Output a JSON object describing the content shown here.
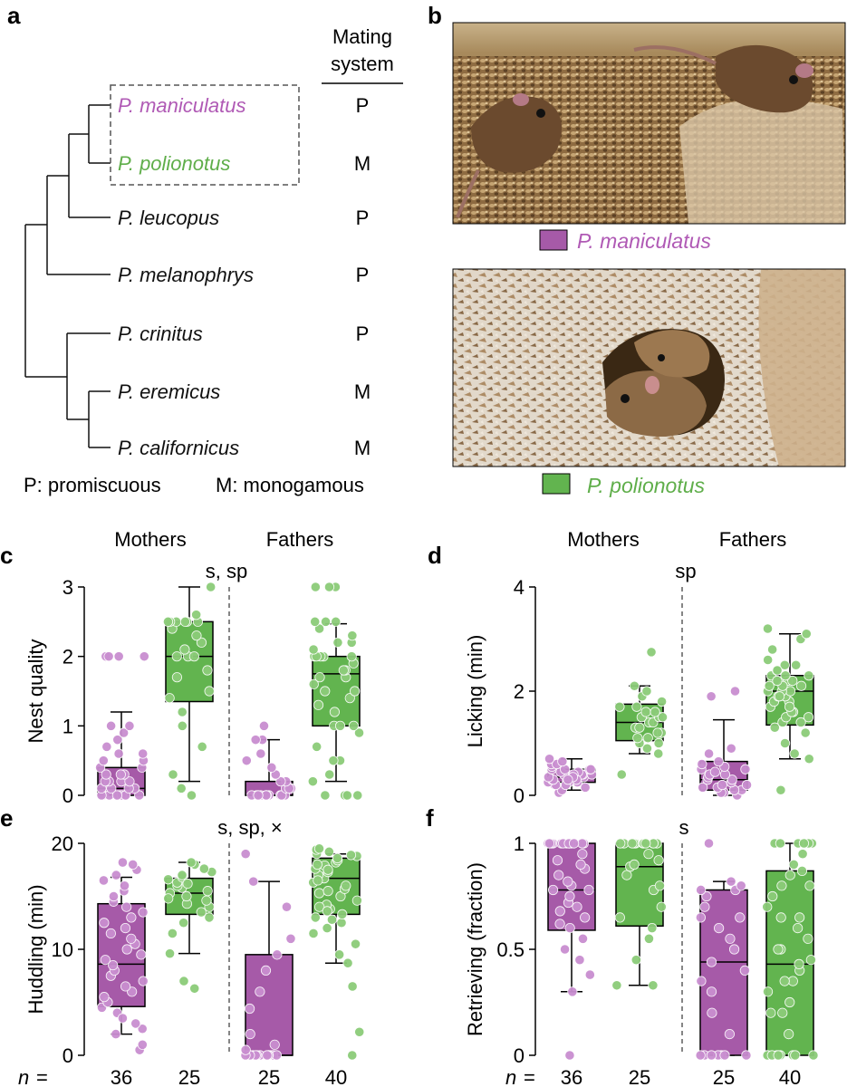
{
  "colors": {
    "maniculatus": "#b05ab5",
    "maniculatus_fill": "#a65aa8",
    "maniculatus_point": "#c98ed0",
    "polionotus": "#5fae4a",
    "polionotus_fill": "#62b44f",
    "polionotus_point": "#8ccc79"
  },
  "panel_a": {
    "letter": "a",
    "column_header_line1": "Mating",
    "column_header_line2": "system",
    "species": [
      {
        "name": "P. maniculatus",
        "system": "P",
        "color": "#b05ab5"
      },
      {
        "name": "P. polionotus",
        "system": "M",
        "color": "#5fae4a"
      },
      {
        "name": "P. leucopus",
        "system": "P",
        "color": "#111111"
      },
      {
        "name": "P. melanophrys",
        "system": "P",
        "color": "#111111"
      },
      {
        "name": "P. crinitus",
        "system": "P",
        "color": "#111111"
      },
      {
        "name": "P. eremicus",
        "system": "M",
        "color": "#111111"
      },
      {
        "name": "P. californicus",
        "system": "M",
        "color": "#111111"
      }
    ],
    "legend_p": "P: promiscuous",
    "legend_m": "M: monogamous"
  },
  "panel_b": {
    "letter": "b",
    "photo1_label": "P. maniculatus",
    "photo2_label": "P. polionotus"
  },
  "group_labels": {
    "mothers": "Mothers",
    "fathers": "Fathers"
  },
  "n_row": {
    "label": "n =",
    "values": [
      "36",
      "25",
      "25",
      "40"
    ]
  },
  "chart_data": [
    {
      "panel": "c",
      "type": "box",
      "ylabel": "Nest quality",
      "significance": "s, sp",
      "ylim": [
        0,
        3
      ],
      "yticks": [
        0,
        1,
        2,
        3
      ],
      "groups": [
        "Mothers",
        "Fathers"
      ],
      "series": [
        {
          "group": "Mothers",
          "species": "P. maniculatus",
          "n": 36,
          "whisker_low": 0,
          "q1": 0,
          "median": 0.1,
          "q3": 0.4,
          "whisker_high": 1.2,
          "points": [
            0,
            0,
            0,
            0,
            0,
            0,
            0,
            0,
            0,
            0,
            0.1,
            0.1,
            0.1,
            0.1,
            0.2,
            0.2,
            0.2,
            0.2,
            0.3,
            0.3,
            0.3,
            0.4,
            0.4,
            0.5,
            0.5,
            0.6,
            0.6,
            0.7,
            0.8,
            0.9,
            1.0,
            1.0,
            2.0,
            2.0,
            2.0,
            2.0
          ]
        },
        {
          "group": "Mothers",
          "species": "P. polionotus",
          "n": 25,
          "whisker_low": 0.2,
          "q1": 1.35,
          "median": 2.0,
          "q3": 2.5,
          "whisker_high": 3.0,
          "points": [
            0,
            0.1,
            0.3,
            0.7,
            1.0,
            1.2,
            1.4,
            1.5,
            1.7,
            1.8,
            2.0,
            2.0,
            2.0,
            2.1,
            2.2,
            2.3,
            2.4,
            2.5,
            2.5,
            2.5,
            2.5,
            2.5,
            2.5,
            2.6,
            3.0
          ]
        },
        {
          "group": "Fathers",
          "species": "P. maniculatus",
          "n": 25,
          "whisker_low": 0,
          "q1": 0,
          "median": 0,
          "q3": 0.2,
          "whisker_high": 0.8,
          "points": [
            0,
            0,
            0,
            0,
            0,
            0,
            0,
            0,
            0,
            0,
            0,
            0,
            0,
            0.1,
            0.1,
            0.1,
            0.2,
            0.2,
            0.3,
            0.4,
            0.5,
            0.6,
            0.8,
            0.8,
            1.0
          ]
        },
        {
          "group": "Fathers",
          "species": "P. polionotus",
          "n": 40,
          "whisker_low": 0.2,
          "q1": 1.0,
          "median": 1.75,
          "q3": 2.0,
          "whisker_high": 2.47,
          "points": [
            0,
            0,
            0,
            0,
            0.2,
            0.3,
            0.5,
            0.5,
            0.7,
            0.9,
            1.0,
            1.0,
            1.0,
            1.2,
            1.3,
            1.4,
            1.5,
            1.5,
            1.6,
            1.7,
            1.7,
            1.8,
            1.8,
            1.9,
            2.0,
            2.0,
            2.0,
            2.0,
            2.0,
            2.1,
            2.2,
            2.2,
            2.3,
            2.4,
            2.5,
            2.5,
            2.5,
            3.0,
            3.0,
            3.0
          ]
        }
      ]
    },
    {
      "panel": "d",
      "type": "box",
      "ylabel": "Licking (min)",
      "significance": "sp",
      "ylim": [
        0,
        4
      ],
      "yticks": [
        0,
        2,
        4
      ],
      "groups": [
        "Mothers",
        "Fathers"
      ],
      "series": [
        {
          "group": "Mothers",
          "species": "P. maniculatus",
          "n": 36,
          "whisker_low": 0.1,
          "q1": 0.25,
          "median": 0.35,
          "q3": 0.5,
          "whisker_high": 0.7,
          "points": [
            0.05,
            0.1,
            0.15,
            0.2,
            0.2,
            0.25,
            0.25,
            0.3,
            0.3,
            0.3,
            0.3,
            0.35,
            0.35,
            0.35,
            0.35,
            0.4,
            0.4,
            0.4,
            0.4,
            0.45,
            0.45,
            0.5,
            0.5,
            0.5,
            0.55,
            0.6,
            0.6,
            0.65,
            0.7,
            0.3,
            0.25,
            0.2,
            0.4,
            0.5,
            0.35,
            0.3
          ]
        },
        {
          "group": "Mothers",
          "species": "P. polionotus",
          "n": 25,
          "whisker_low": 0.8,
          "q1": 1.05,
          "median": 1.4,
          "q3": 1.75,
          "whisker_high": 2.1,
          "points": [
            0.4,
            0.8,
            0.9,
            1.0,
            1.0,
            1.1,
            1.1,
            1.2,
            1.2,
            1.3,
            1.3,
            1.4,
            1.4,
            1.5,
            1.5,
            1.5,
            1.6,
            1.6,
            1.7,
            1.7,
            1.8,
            1.9,
            2.0,
            2.1,
            2.75
          ]
        },
        {
          "group": "Fathers",
          "species": "P. maniculatus",
          "n": 25,
          "whisker_low": 0,
          "q1": 0.1,
          "median": 0.3,
          "q3": 0.65,
          "whisker_high": 1.45,
          "points": [
            0,
            0.05,
            0.05,
            0.1,
            0.1,
            0.15,
            0.15,
            0.2,
            0.2,
            0.25,
            0.3,
            0.3,
            0.35,
            0.4,
            0.4,
            0.45,
            0.5,
            0.5,
            0.55,
            0.6,
            0.65,
            0.8,
            0.9,
            1.9,
            2.0
          ]
        },
        {
          "group": "Fathers",
          "species": "P. polionotus",
          "n": 40,
          "whisker_low": 0.7,
          "q1": 1.35,
          "median": 2.0,
          "q3": 2.3,
          "whisker_high": 3.1,
          "points": [
            0.1,
            0.7,
            0.8,
            1.0,
            1.2,
            1.3,
            1.4,
            1.5,
            1.5,
            1.6,
            1.7,
            1.8,
            1.8,
            1.9,
            1.9,
            2.0,
            2.0,
            2.0,
            2.1,
            2.1,
            2.2,
            2.2,
            2.3,
            2.3,
            2.3,
            2.4,
            2.5,
            2.6,
            2.8,
            3.0,
            3.1,
            3.2,
            1.6,
            1.9,
            2.1,
            2.4,
            1.4,
            1.7,
            2.2,
            2.5
          ]
        }
      ]
    },
    {
      "panel": "e",
      "type": "box",
      "ylabel": "Huddling (min)",
      "significance": "s, sp, ×",
      "ylim": [
        0,
        20
      ],
      "yticks": [
        0,
        10,
        20
      ],
      "groups": [
        "Mothers",
        "Fathers"
      ],
      "series": [
        {
          "group": "Mothers",
          "species": "P. maniculatus",
          "n": 36,
          "whisker_low": 2.0,
          "q1": 4.6,
          "median": 8.6,
          "q3": 14.3,
          "whisker_high": 16.8,
          "points": [
            0.5,
            1.0,
            2.0,
            2.5,
            3.0,
            4.0,
            4.5,
            5.0,
            5.5,
            6.0,
            6.5,
            7.0,
            7.5,
            8.0,
            8.5,
            9.0,
            9.5,
            10.0,
            10.5,
            11.0,
            11.5,
            12.0,
            12.5,
            13.0,
            13.5,
            14.0,
            14.5,
            15.0,
            15.5,
            16.0,
            16.5,
            17.0,
            17.5,
            18.0,
            18.2,
            3.5
          ]
        },
        {
          "group": "Mothers",
          "species": "P. polionotus",
          "n": 25,
          "whisker_low": 9.6,
          "q1": 13.3,
          "median": 15.3,
          "q3": 16.7,
          "whisker_high": 18.2,
          "points": [
            6.3,
            7.0,
            9.6,
            11.5,
            12.5,
            13.0,
            13.5,
            14.0,
            14.3,
            14.6,
            15.0,
            15.3,
            15.5,
            15.8,
            16.0,
            16.3,
            16.6,
            16.8,
            17.0,
            17.3,
            17.6,
            18.0,
            18.2,
            14.8,
            16.2
          ]
        },
        {
          "group": "Fathers",
          "species": "P. maniculatus",
          "n": 25,
          "whisker_low": 0,
          "q1": 0,
          "median": 0,
          "q3": 9.5,
          "whisker_high": 16.4,
          "points": [
            0,
            0,
            0,
            0,
            0,
            0,
            0,
            0,
            0,
            0,
            0,
            0,
            0,
            0,
            0.5,
            1.0,
            2.0,
            4.4,
            6.0,
            8.0,
            9.5,
            11.0,
            14.0,
            16.4,
            19.0
          ]
        },
        {
          "group": "Fathers",
          "species": "P. polionotus",
          "n": 40,
          "whisker_low": 8.7,
          "q1": 13.3,
          "median": 16.7,
          "q3": 18.6,
          "whisker_high": 19.0,
          "points": [
            0,
            2.2,
            6.5,
            8.7,
            9.5,
            10.5,
            11.5,
            12.0,
            12.5,
            13.0,
            13.3,
            13.8,
            14.2,
            14.6,
            15.0,
            15.3,
            15.7,
            16.0,
            16.3,
            16.7,
            17.0,
            17.3,
            17.6,
            17.9,
            18.2,
            18.4,
            18.6,
            18.8,
            19.0,
            19.2,
            19.4,
            19.5,
            14.0,
            15.5,
            16.5,
            17.5,
            18.0,
            12.8,
            13.6,
            18.9
          ]
        }
      ]
    },
    {
      "panel": "f",
      "type": "box",
      "ylabel": "Retrieving (fraction)",
      "significance": "s",
      "ylim": [
        0,
        1
      ],
      "yticks": [
        0,
        0.5,
        1
      ],
      "groups": [
        "Mothers",
        "Fathers"
      ],
      "series": [
        {
          "group": "Mothers",
          "species": "P. maniculatus",
          "n": 36,
          "whisker_low": 0.3,
          "q1": 0.59,
          "median": 0.78,
          "q3": 1.0,
          "whisker_high": 1.0,
          "points": [
            0,
            0.3,
            0.38,
            0.45,
            0.5,
            0.55,
            0.6,
            0.62,
            0.65,
            0.68,
            0.7,
            0.72,
            0.75,
            0.78,
            0.78,
            0.8,
            0.82,
            0.85,
            0.88,
            0.9,
            0.92,
            0.95,
            1,
            1,
            1,
            1,
            1,
            1,
            1,
            1,
            1,
            1,
            1,
            1,
            1,
            1
          ]
        },
        {
          "group": "Mothers",
          "species": "P. polionotus",
          "n": 25,
          "whisker_low": 0.33,
          "q1": 0.61,
          "median": 0.89,
          "q3": 1.0,
          "whisker_high": 1.0,
          "points": [
            0.33,
            0.33,
            0.45,
            0.55,
            0.6,
            0.65,
            0.7,
            0.78,
            0.8,
            0.85,
            0.89,
            0.9,
            0.92,
            0.95,
            1,
            1,
            1,
            1,
            1,
            1,
            1,
            1,
            1,
            1,
            1
          ]
        },
        {
          "group": "Fathers",
          "species": "P. maniculatus",
          "n": 25,
          "whisker_low": 0,
          "q1": 0,
          "median": 0.44,
          "q3": 0.78,
          "whisker_high": 0.82,
          "points": [
            0,
            0,
            0,
            0,
            0,
            0,
            0,
            0.1,
            0.2,
            0.3,
            0.4,
            0.44,
            0.5,
            0.55,
            0.6,
            0.65,
            0.7,
            0.75,
            0.78,
            0.78,
            0.8,
            0.82,
            0.65,
            0.35,
            1.0
          ]
        },
        {
          "group": "Fathers",
          "species": "P. polionotus",
          "n": 40,
          "whisker_low": 0,
          "q1": 0,
          "median": 0.43,
          "q3": 0.87,
          "whisker_high": 1.0,
          "points": [
            0,
            0,
            0,
            0,
            0,
            0,
            0,
            0,
            0,
            0.1,
            0.2,
            0.25,
            0.3,
            0.35,
            0.4,
            0.43,
            0.45,
            0.5,
            0.55,
            0.6,
            0.65,
            0.7,
            0.75,
            0.8,
            0.85,
            0.87,
            0.9,
            0.95,
            1,
            1,
            1,
            1,
            1,
            1,
            1,
            0.2,
            0.35,
            0.5,
            0.65,
            0.8
          ]
        }
      ]
    }
  ]
}
